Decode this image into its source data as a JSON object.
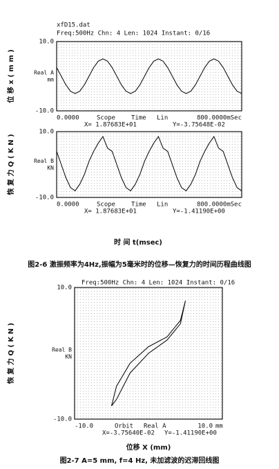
{
  "figure_1": {
    "file": "xfD15.dat",
    "header": "Freq:500Hz   Chn: 4   Len: 1024   Instant:  0/16",
    "charts": [
      {
        "type": "line",
        "ylabel": "位 移  x  ( m m )",
        "channel": "Real A",
        "unit": "mm",
        "mode": "Scope",
        "axis": "Time",
        "scale": "Lin",
        "cursor_x": "X= 1.87683E+01",
        "cursor_y": "Y=-3.75648E-02",
        "x": [
          0,
          20,
          40,
          60,
          80,
          100,
          120,
          140,
          160,
          180,
          200,
          220,
          240,
          260,
          280,
          300,
          320,
          340,
          360,
          380,
          400,
          420,
          440,
          460,
          480,
          500,
          520,
          540,
          560,
          580,
          600,
          620,
          640,
          660,
          680,
          700,
          720,
          740,
          760,
          780,
          800
        ],
        "values": [
          2.5,
          0,
          -2.5,
          -4.33,
          -5,
          -4.33,
          -2.5,
          0,
          2.5,
          4.33,
          5,
          4.33,
          2.5,
          0,
          -2.5,
          -4.33,
          -5,
          -4.33,
          -2.5,
          0,
          2.5,
          4.33,
          5,
          4.33,
          2.5,
          0,
          -2.5,
          -4.33,
          -5,
          -4.33,
          -2.5,
          0,
          2.5,
          4.33,
          5,
          4.33,
          2.5,
          0,
          -2.5,
          -4.33,
          -5
        ],
        "xlim": [
          0,
          800
        ],
        "ylim": [
          -10,
          10
        ],
        "xticks": [
          {
            "value": 0,
            "label": "0.0000"
          },
          {
            "value": 800,
            "label": "800.0000mSec"
          }
        ],
        "yticks": [
          {
            "value": 10,
            "label": "10.0"
          },
          {
            "value": -10,
            "label": "-10.0"
          }
        ],
        "color": "#111"
      },
      {
        "type": "line",
        "ylabel": "恢 复 力  Q  ( K N )",
        "channel": "Real B",
        "unit": "KN",
        "mode": "Scope",
        "axis": "Time",
        "scale": "Lin",
        "cursor_x": "X= 1.87683E+01",
        "cursor_y": "Y=-1.41190E+00",
        "x": [
          0,
          20,
          40,
          60,
          80,
          100,
          120,
          140,
          160,
          180,
          200,
          220,
          240,
          260,
          280,
          300,
          320,
          340,
          360,
          380,
          400,
          420,
          440,
          460,
          480,
          500,
          520,
          540,
          560,
          580,
          600,
          620,
          640,
          660,
          680,
          700,
          720,
          740,
          760,
          780,
          800
        ],
        "values": [
          4,
          0,
          -4,
          -7,
          -8,
          -6,
          -3,
          1,
          4,
          6.5,
          8.5,
          5,
          4,
          0,
          -4,
          -7,
          -8,
          -6,
          -3,
          1,
          4,
          6.5,
          8.5,
          5,
          4,
          0,
          -4,
          -7,
          -8,
          -6,
          -3,
          1,
          4,
          6.5,
          8.5,
          5,
          4,
          0,
          -4,
          -7,
          -8
        ],
        "xlim": [
          0,
          800
        ],
        "ylim": [
          -10,
          10
        ],
        "xticks": [
          {
            "value": 0,
            "label": "0.0000"
          },
          {
            "value": 800,
            "label": "800.0000mSec"
          }
        ],
        "yticks": [
          {
            "value": 10,
            "label": "10.0"
          },
          {
            "value": -10,
            "label": "-10.0"
          }
        ],
        "color": "#111"
      }
    ],
    "xlabel": "时 间    t(msec)",
    "caption": "图2-6 激振频率为4Hz,振幅为5毫米时的位移—恢复力的时间历程曲线图"
  },
  "figure_2": {
    "header": "Freq:500Hz   Chn: 4   Len: 1024   Instant:  0/16",
    "charts": [
      {
        "type": "line",
        "ylabel": "恢 复 力  Q  ( K N )",
        "channel": "Real B",
        "unit": "KN",
        "mode": "Orbit",
        "axis": "Real A",
        "xunit": "mm",
        "cursor_x": "X=-3.75640E-02",
        "cursor_y": "Y=-1.41190E+00",
        "x": [
          -5,
          -4.33,
          -2.5,
          0,
          2.5,
          4.33,
          5,
          4.33,
          2.5,
          0,
          -2.5,
          -4.33,
          -5
        ],
        "values": [
          -8,
          -7,
          -3,
          0,
          2,
          4.5,
          8,
          5,
          2.5,
          1,
          -1.5,
          -5,
          -8
        ],
        "xlim": [
          -10,
          10
        ],
        "ylim": [
          -10,
          10
        ],
        "xticks": [
          {
            "value": -10,
            "label": "-10.0"
          },
          {
            "value": 10,
            "label": "10.0"
          }
        ],
        "yticks": [
          {
            "value": 10,
            "label": "10.0"
          },
          {
            "value": -10,
            "label": "-10.0"
          }
        ],
        "color": "#111"
      }
    ],
    "xlabel": "位移   X  (mm)",
    "caption": "图2-7   A=5 mm,  f=4 Hz,  未加滤波的迟滞回线图"
  }
}
